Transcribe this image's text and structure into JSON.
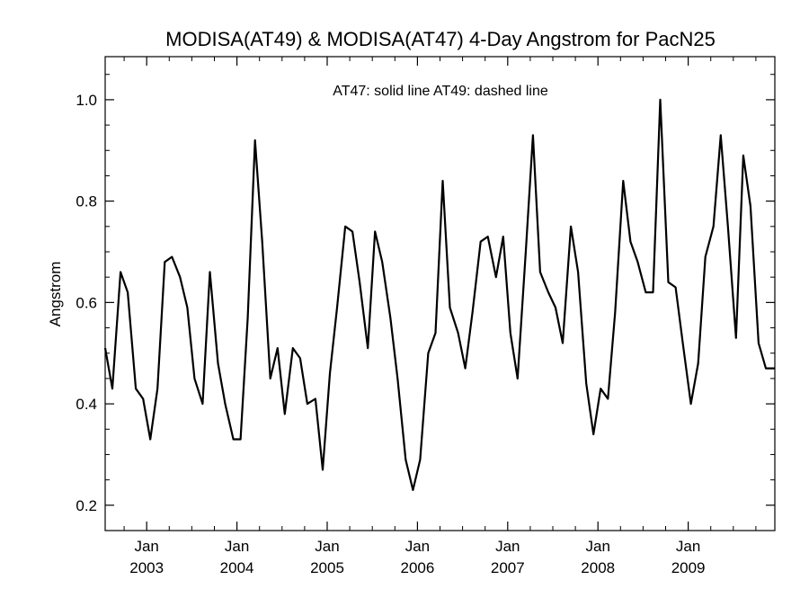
{
  "chart_data": {
    "type": "line",
    "title": "MODISA(AT49) & MODISA(AT47) 4-Day Angstrom for PacN25",
    "annotation": "AT47: solid line   AT49: dashed line",
    "xlabel": "",
    "ylabel": "Angstrom",
    "xlim": [
      2002.54,
      2009.96
    ],
    "ylim": [
      0.15,
      1.085
    ],
    "y_ticks": [
      0.2,
      0.4,
      0.6,
      0.8,
      1.0
    ],
    "y_tick_labels": [
      "0.2",
      "0.4",
      "0.6",
      "0.8",
      "1.0"
    ],
    "x_ticks": [
      {
        "x": 2003.0,
        "month": "Jan",
        "year": "2003"
      },
      {
        "x": 2004.0,
        "month": "Jan",
        "year": "2004"
      },
      {
        "x": 2005.0,
        "month": "Jan",
        "year": "2005"
      },
      {
        "x": 2006.0,
        "month": "Jan",
        "year": "2006"
      },
      {
        "x": 2007.0,
        "month": "Jan",
        "year": "2007"
      },
      {
        "x": 2008.0,
        "month": "Jan",
        "year": "2008"
      },
      {
        "x": 2009.0,
        "month": "Jan",
        "year": "2009"
      }
    ],
    "grid": false,
    "series": [
      {
        "name": "AT47",
        "style": "solid",
        "color": "#000000",
        "x": [
          2002.54,
          2002.62,
          2002.71,
          2002.79,
          2002.88,
          2002.96,
          2003.04,
          2003.12,
          2003.2,
          2003.28,
          2003.37,
          2003.45,
          2003.53,
          2003.62,
          2003.7,
          2003.79,
          2003.87,
          2003.96,
          2004.04,
          2004.12,
          2004.2,
          2004.28,
          2004.37,
          2004.45,
          2004.53,
          2004.62,
          2004.7,
          2004.78,
          2004.87,
          2004.95,
          2005.03,
          2005.11,
          2005.2,
          2005.28,
          2005.36,
          2005.45,
          2005.53,
          2005.61,
          2005.7,
          2005.78,
          2005.87,
          2005.95,
          2005.99,
          2006.03,
          2006.12,
          2006.2,
          2006.28,
          2006.36,
          2006.45,
          2006.53,
          2006.61,
          2006.7,
          2006.78,
          2006.87,
          2006.95,
          2007.03,
          2007.11,
          2007.2,
          2007.28,
          2007.36,
          2007.45,
          2007.53,
          2007.61,
          2007.7,
          2007.78,
          2007.87,
          2007.95,
          2008.03,
          2008.11,
          2008.19,
          2008.28,
          2008.36,
          2008.44,
          2008.53,
          2008.61,
          2008.69,
          2008.78,
          2008.86,
          2008.94,
          2009.03,
          2009.11,
          2009.19,
          2009.28,
          2009.36,
          2009.44,
          2009.53,
          2009.61,
          2009.69,
          2009.78,
          2009.86,
          2009.96
        ],
        "y": [
          0.51,
          0.43,
          0.66,
          0.62,
          0.43,
          0.41,
          0.33,
          0.43,
          0.68,
          0.69,
          0.65,
          0.59,
          0.45,
          0.4,
          0.66,
          0.48,
          0.4,
          0.33,
          0.33,
          0.57,
          0.92,
          0.72,
          0.45,
          0.51,
          0.38,
          0.51,
          0.49,
          0.4,
          0.41,
          0.27,
          0.46,
          0.59,
          0.75,
          0.74,
          0.64,
          0.51,
          0.74,
          0.68,
          0.57,
          0.45,
          0.29,
          0.23,
          0.26,
          0.29,
          0.5,
          0.54,
          0.84,
          0.59,
          0.54,
          0.47,
          0.58,
          0.72,
          0.73,
          0.65,
          0.73,
          0.54,
          0.45,
          0.7,
          0.93,
          0.66,
          0.62,
          0.59,
          0.52,
          0.75,
          0.66,
          0.44,
          0.34,
          0.43,
          0.41,
          0.58,
          0.84,
          0.72,
          0.68,
          0.62,
          0.62,
          1.0,
          0.64,
          0.63,
          0.52,
          0.4,
          0.48,
          0.69,
          0.75,
          0.93,
          0.75,
          0.53,
          0.89,
          0.79,
          0.52,
          0.47,
          0.47
        ]
      }
    ]
  }
}
